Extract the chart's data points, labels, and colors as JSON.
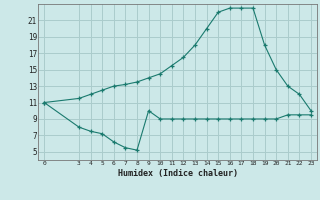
{
  "xlabel": "Humidex (Indice chaleur)",
  "background_color": "#cce8e8",
  "grid_color": "#aacccc",
  "line_color": "#1a7a6e",
  "line1_x": [
    0,
    3,
    4,
    5,
    6,
    7,
    8,
    9,
    10,
    11,
    12,
    13,
    14,
    15,
    16,
    17,
    18,
    19,
    20,
    21,
    22,
    23
  ],
  "line1_y": [
    11,
    8,
    7.5,
    7.2,
    6.2,
    5.5,
    5.2,
    10,
    9,
    9,
    9,
    9,
    9,
    9,
    9,
    9,
    9,
    9,
    9,
    9.5,
    9.5,
    9.5
  ],
  "line2_x": [
    0,
    3,
    4,
    5,
    6,
    7,
    8,
    9,
    10,
    11,
    12,
    13,
    14,
    15,
    16,
    17,
    18,
    19,
    20,
    21,
    22,
    23
  ],
  "line2_y": [
    11,
    11.5,
    12,
    12.5,
    13,
    13.2,
    13.5,
    14,
    14.5,
    15.5,
    16.5,
    18,
    20,
    22,
    22.5,
    22.5,
    22.5,
    18,
    15,
    13,
    12,
    10
  ],
  "xlim": [
    -0.5,
    23.5
  ],
  "ylim": [
    4,
    23
  ],
  "yticks": [
    5,
    7,
    9,
    11,
    13,
    15,
    17,
    19,
    21
  ],
  "xticks": [
    0,
    3,
    4,
    5,
    6,
    7,
    8,
    9,
    10,
    11,
    12,
    13,
    14,
    15,
    16,
    17,
    18,
    19,
    20,
    21,
    22,
    23
  ]
}
